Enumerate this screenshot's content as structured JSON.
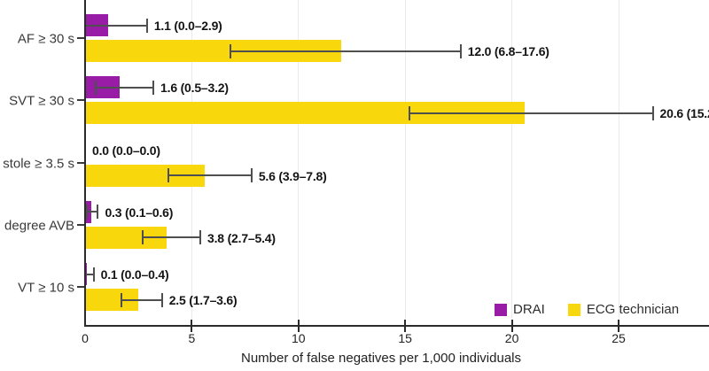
{
  "chart_data": {
    "type": "bar",
    "orientation": "horizontal",
    "title": "",
    "xlabel": "Number of false negatives per 1,000 individuals",
    "ylabel": "",
    "xlim": [
      0,
      29.2
    ],
    "xticks": [
      0,
      5,
      10,
      15,
      20,
      25
    ],
    "grid": true,
    "legend": {
      "position": "bottom-right",
      "entries": [
        {
          "name": "DRAI",
          "color": "#991CA6"
        },
        {
          "name": "ECG technician",
          "color": "#F8D80C"
        }
      ]
    },
    "categories": [
      "AF ≥ 30 s",
      "SVT ≥ 30 s",
      "stole ≥ 3.5 s",
      "degree AVB",
      "VT ≥ 10 s"
    ],
    "series": [
      {
        "name": "DRAI",
        "color": "#991CA6",
        "values": [
          1.1,
          1.6,
          0.0,
          0.3,
          0.1
        ],
        "ci_low": [
          0.0,
          0.5,
          0.0,
          0.1,
          0.0
        ],
        "ci_high": [
          2.9,
          3.2,
          0.0,
          0.6,
          0.4
        ],
        "labels": [
          "1.1 (0.0–2.9)",
          "1.6 (0.5–3.2)",
          "0.0 (0.0–0.0)",
          "0.3 (0.1–0.6)",
          "0.1 (0.0–0.4)"
        ]
      },
      {
        "name": "ECG technician",
        "color": "#F8D80C",
        "values": [
          12.0,
          20.6,
          5.6,
          3.8,
          2.5
        ],
        "ci_low": [
          6.8,
          15.2,
          3.9,
          2.7,
          1.7
        ],
        "ci_high": [
          17.6,
          26.6,
          7.8,
          5.4,
          3.6
        ],
        "labels": [
          "12.0 (6.8–17.6)",
          "20.6 (15.2",
          "5.6 (3.9–7.8)",
          "3.8 (2.7–5.4)",
          "2.5 (1.7–3.6)"
        ]
      }
    ]
  }
}
